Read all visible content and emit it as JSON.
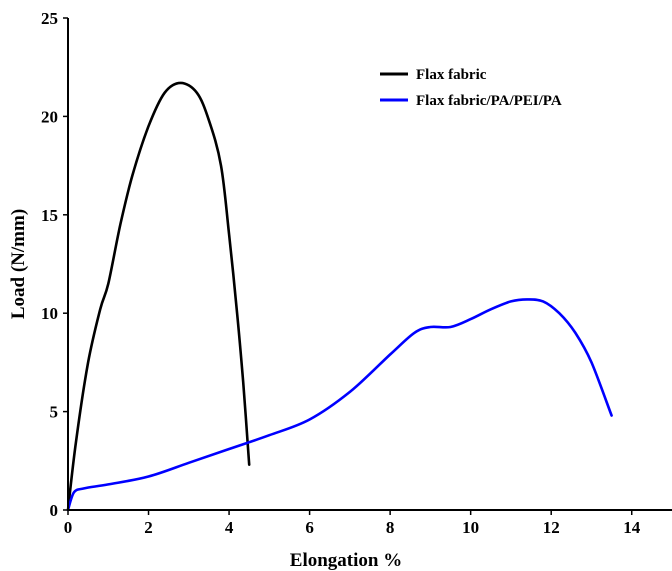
{
  "chart_data": {
    "type": "line",
    "title": "",
    "xlabel": "Elongation %",
    "ylabel": "Load (N/mm)",
    "xlim": [
      0,
      15
    ],
    "ylim": [
      0,
      25
    ],
    "x_ticks": [
      "0",
      "2",
      "4",
      "6",
      "8",
      "10",
      "12",
      "14"
    ],
    "y_ticks": [
      "0",
      "5",
      "10",
      "15",
      "20",
      "25"
    ],
    "x_tick_values": [
      0,
      2,
      4,
      6,
      8,
      10,
      12,
      14
    ],
    "y_tick_values": [
      0,
      5,
      10,
      15,
      20,
      25
    ],
    "grid": false,
    "legend_position": "top-right",
    "series": [
      {
        "name": "Flax fabric",
        "color": "#000000",
        "points": [
          [
            0,
            0
          ],
          [
            0.2,
            3.5
          ],
          [
            0.5,
            7.5
          ],
          [
            0.8,
            10.2
          ],
          [
            1.0,
            11.5
          ],
          [
            1.3,
            14.5
          ],
          [
            1.6,
            17.0
          ],
          [
            2.0,
            19.5
          ],
          [
            2.4,
            21.2
          ],
          [
            2.8,
            21.7
          ],
          [
            3.2,
            21.2
          ],
          [
            3.5,
            19.8
          ],
          [
            3.8,
            17.5
          ],
          [
            4.0,
            14.0
          ],
          [
            4.2,
            10.0
          ],
          [
            4.35,
            6.5
          ],
          [
            4.5,
            2.3
          ]
        ]
      },
      {
        "name": "Flax fabric/PA/PEI/PA",
        "color": "#0000ff",
        "points": [
          [
            0,
            0
          ],
          [
            0.15,
            0.9
          ],
          [
            0.4,
            1.1
          ],
          [
            1.0,
            1.3
          ],
          [
            2.0,
            1.7
          ],
          [
            3.0,
            2.4
          ],
          [
            4.0,
            3.1
          ],
          [
            5.0,
            3.8
          ],
          [
            6.0,
            4.6
          ],
          [
            7.0,
            6.0
          ],
          [
            8.0,
            7.9
          ],
          [
            8.6,
            9.0
          ],
          [
            9.0,
            9.3
          ],
          [
            9.5,
            9.3
          ],
          [
            10.0,
            9.7
          ],
          [
            10.5,
            10.2
          ],
          [
            11.0,
            10.6
          ],
          [
            11.4,
            10.7
          ],
          [
            11.8,
            10.6
          ],
          [
            12.2,
            10.0
          ],
          [
            12.6,
            9.0
          ],
          [
            13.0,
            7.5
          ],
          [
            13.5,
            4.8
          ]
        ]
      }
    ]
  }
}
